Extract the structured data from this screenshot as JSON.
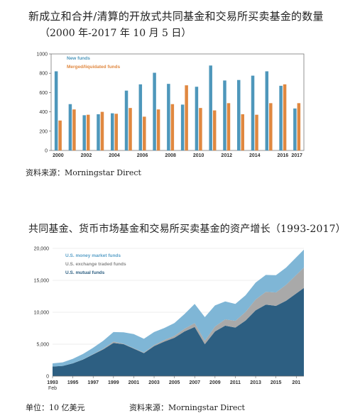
{
  "chart1_title": "新成立和合并/清算的开放式共同基金和交易所买卖基金的数量",
  "chart1_subtitle": "（2000 年-2017 年 10 月 5 日）",
  "chart1_source": "资料来源：Morningstar Direct",
  "chart2_title": "共同基金、货币市场基金和交易所买卖基金的资产增长（1993-2017）",
  "chart2_unit": "单位：10 亿美元",
  "chart2_source": "资料来源：Morningstar Direct",
  "colors": {
    "new": "#4e97bb",
    "merged": "#e08840",
    "mm": "#7fb6d6",
    "etf": "#a9a9a9",
    "mf": "#2d5f82"
  },
  "chart_data": [
    {
      "type": "bar",
      "categories": [
        "2000",
        "2001",
        "2002",
        "2003",
        "2004",
        "2005",
        "2006",
        "2007",
        "2008",
        "2009",
        "2010",
        "2011",
        "2012",
        "2013",
        "2014",
        "2015",
        "2016",
        "2017"
      ],
      "x_tick_labels": [
        "2000",
        "2002",
        "2004",
        "2006",
        "2008",
        "2010",
        "2012",
        "2014",
        "2016",
        "2017"
      ],
      "series": [
        {
          "name": "New funds",
          "values": [
            820,
            480,
            365,
            375,
            385,
            620,
            685,
            805,
            690,
            475,
            660,
            880,
            725,
            730,
            775,
            820,
            670,
            435
          ]
        },
        {
          "name": "Merged/liquidated funds",
          "values": [
            310,
            425,
            370,
            400,
            380,
            440,
            350,
            425,
            480,
            675,
            440,
            415,
            490,
            375,
            370,
            490,
            685,
            490
          ]
        }
      ],
      "ylim": [
        0,
        1000
      ],
      "yticks": [
        0,
        200,
        400,
        600,
        800,
        1000
      ],
      "ytick_labels": [
        "0",
        "200",
        "400",
        "600",
        "800",
        "1000"
      ],
      "legend": "top-left"
    },
    {
      "type": "area",
      "stacked": true,
      "x": [
        1993,
        1994,
        1995,
        1996,
        1997,
        1998,
        1999,
        2000,
        2001,
        2002,
        2003,
        2004,
        2005,
        2006,
        2007,
        2008,
        2009,
        2010,
        2011,
        2012,
        2013,
        2014,
        2015,
        2016,
        2017.75
      ],
      "x_tick_labels": [
        "1993",
        "1995",
        "1997",
        "1999",
        "2001",
        "2003",
        "2005",
        "2007",
        "2009",
        "2011",
        "2013",
        "2015",
        "201"
      ],
      "x_tick_sublabel": "Feb",
      "series": [
        {
          "name": "U.S. mutual funds",
          "values": [
            1500,
            1600,
            2000,
            2600,
            3400,
            4200,
            5200,
            5000,
            4300,
            3600,
            4700,
            5400,
            6000,
            7000,
            7700,
            5000,
            7000,
            7900,
            7600,
            8700,
            10300,
            11200,
            11000,
            11800,
            13800
          ]
        },
        {
          "name": "U.S. exchange traded funds",
          "values": [
            2,
            5,
            10,
            20,
            40,
            100,
            200,
            70,
            80,
            100,
            150,
            230,
            300,
            420,
            600,
            530,
            770,
            990,
            1050,
            1350,
            1700,
            2000,
            2100,
            2500,
            3200
          ]
        },
        {
          "name": "U.S. money market funds",
          "values": [
            500,
            550,
            700,
            850,
            1000,
            1250,
            1500,
            1800,
            2200,
            2150,
            2050,
            1900,
            2000,
            2300,
            3000,
            3700,
            3300,
            2800,
            2650,
            2600,
            2650,
            2650,
            2700,
            2700,
            2800
          ]
        }
      ],
      "ylim": [
        0,
        20000
      ],
      "yticks": [
        0,
        5000,
        10000,
        15000,
        20000
      ],
      "ytick_labels": [
        "0",
        "5,000",
        "10,000",
        "15,000",
        "20,000"
      ],
      "legend": "top-left"
    }
  ]
}
